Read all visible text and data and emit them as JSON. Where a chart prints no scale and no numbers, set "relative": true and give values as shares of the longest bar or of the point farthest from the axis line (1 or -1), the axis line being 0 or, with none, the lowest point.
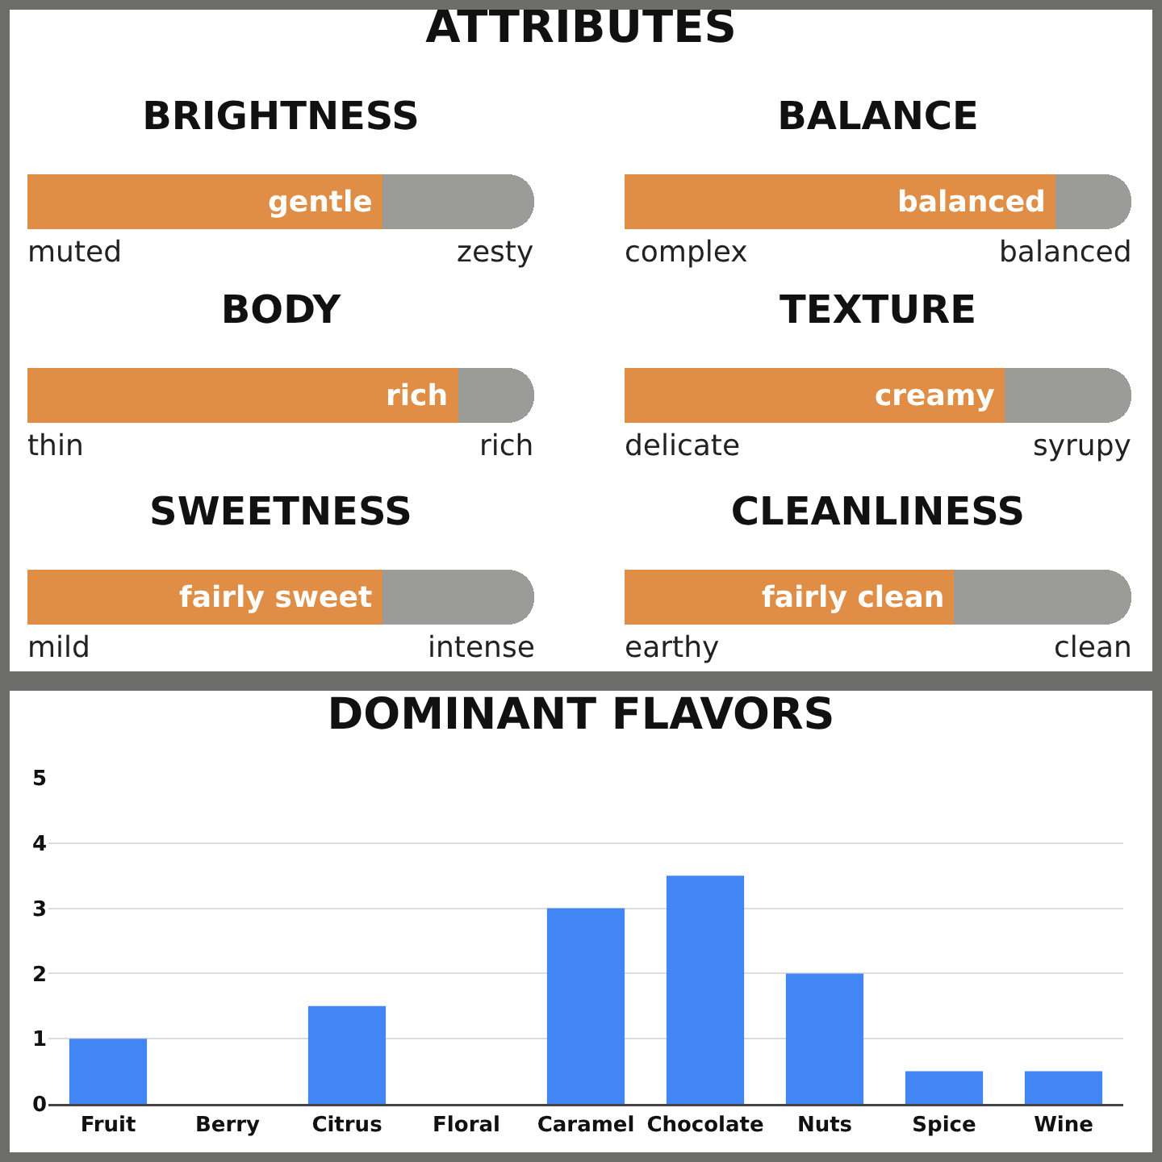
{
  "chart_data": [
    {
      "type": "other",
      "title": "ATTRIBUTES"
    },
    {
      "type": "bar",
      "title": "BRIGHTNESS",
      "orientation": "horizontal",
      "stacked": true,
      "relative": true,
      "categories": [
        null
      ],
      "annotations": [
        "muted",
        "zesty",
        {
          "text": "gentle",
          "x": 0.7
        }
      ],
      "series": [
        {
          "color": "#e08e45",
          "values": [
            0.7
          ]
        },
        {
          "color": "#9b9c98",
          "values": [
            0.3
          ]
        }
      ]
    },
    {
      "type": "bar",
      "title": "BALANCE",
      "orientation": "horizontal",
      "stacked": true,
      "relative": true,
      "categories": [
        null
      ],
      "annotations": [
        "complex",
        "balanced",
        {
          "text": "balanced",
          "x": 0.85
        }
      ],
      "series": [
        {
          "color": "#e08e45",
          "values": [
            0.85
          ]
        },
        {
          "color": "#9b9c98",
          "values": [
            0.15
          ]
        }
      ]
    },
    {
      "type": "bar",
      "title": "BODY",
      "orientation": "horizontal",
      "stacked": true,
      "relative": true,
      "categories": [
        null
      ],
      "annotations": [
        "thin",
        "rich",
        {
          "text": "rich",
          "x": 0.85
        }
      ],
      "series": [
        {
          "color": "#e08e45",
          "values": [
            0.85
          ]
        },
        {
          "color": "#9b9c98",
          "values": [
            0.15
          ]
        }
      ]
    },
    {
      "type": "bar",
      "title": "TEXTURE",
      "orientation": "horizontal",
      "stacked": true,
      "relative": true,
      "categories": [
        null
      ],
      "annotations": [
        "delicate",
        "syrupy",
        {
          "text": "creamy",
          "x": 0.75
        }
      ],
      "series": [
        {
          "color": "#e08e45",
          "values": [
            0.75
          ]
        },
        {
          "color": "#9b9c98",
          "values": [
            0.25
          ]
        }
      ]
    },
    {
      "type": "bar",
      "title": "SWEETNESS",
      "orientation": "horizontal",
      "stacked": true,
      "relative": true,
      "categories": [
        null
      ],
      "annotations": [
        "mild",
        "intense",
        {
          "text": "fairly sweet",
          "x": 0.7
        }
      ],
      "series": [
        {
          "color": "#e08e45",
          "values": [
            0.7
          ]
        },
        {
          "color": "#9b9c98",
          "values": [
            0.3
          ]
        }
      ]
    },
    {
      "type": "bar",
      "title": "CLEANLINESS",
      "orientation": "horizontal",
      "stacked": true,
      "relative": true,
      "categories": [
        null
      ],
      "annotations": [
        "earthy",
        "clean",
        {
          "text": "fairly clean",
          "x": 0.65
        }
      ],
      "series": [
        {
          "color": "#e08e45",
          "values": [
            0.65
          ]
        },
        {
          "color": "#9b9c98",
          "values": [
            0.35
          ]
        }
      ]
    },
    {
      "type": "bar",
      "title": "DOMINANT FLAVORS",
      "categories": [
        "Fruit",
        "Berry",
        "Citrus",
        "Floral",
        "Caramel",
        "Chocolate",
        "Nuts",
        "Spice",
        "Wine"
      ],
      "values": [
        1,
        0,
        1.5,
        0,
        3,
        3.5,
        2,
        0.5,
        0.5
      ],
      "color": "#4285f4",
      "ylim": [
        0,
        5
      ],
      "yticks": [
        0,
        1,
        2,
        3,
        4,
        5
      ],
      "grid": "y"
    }
  ]
}
